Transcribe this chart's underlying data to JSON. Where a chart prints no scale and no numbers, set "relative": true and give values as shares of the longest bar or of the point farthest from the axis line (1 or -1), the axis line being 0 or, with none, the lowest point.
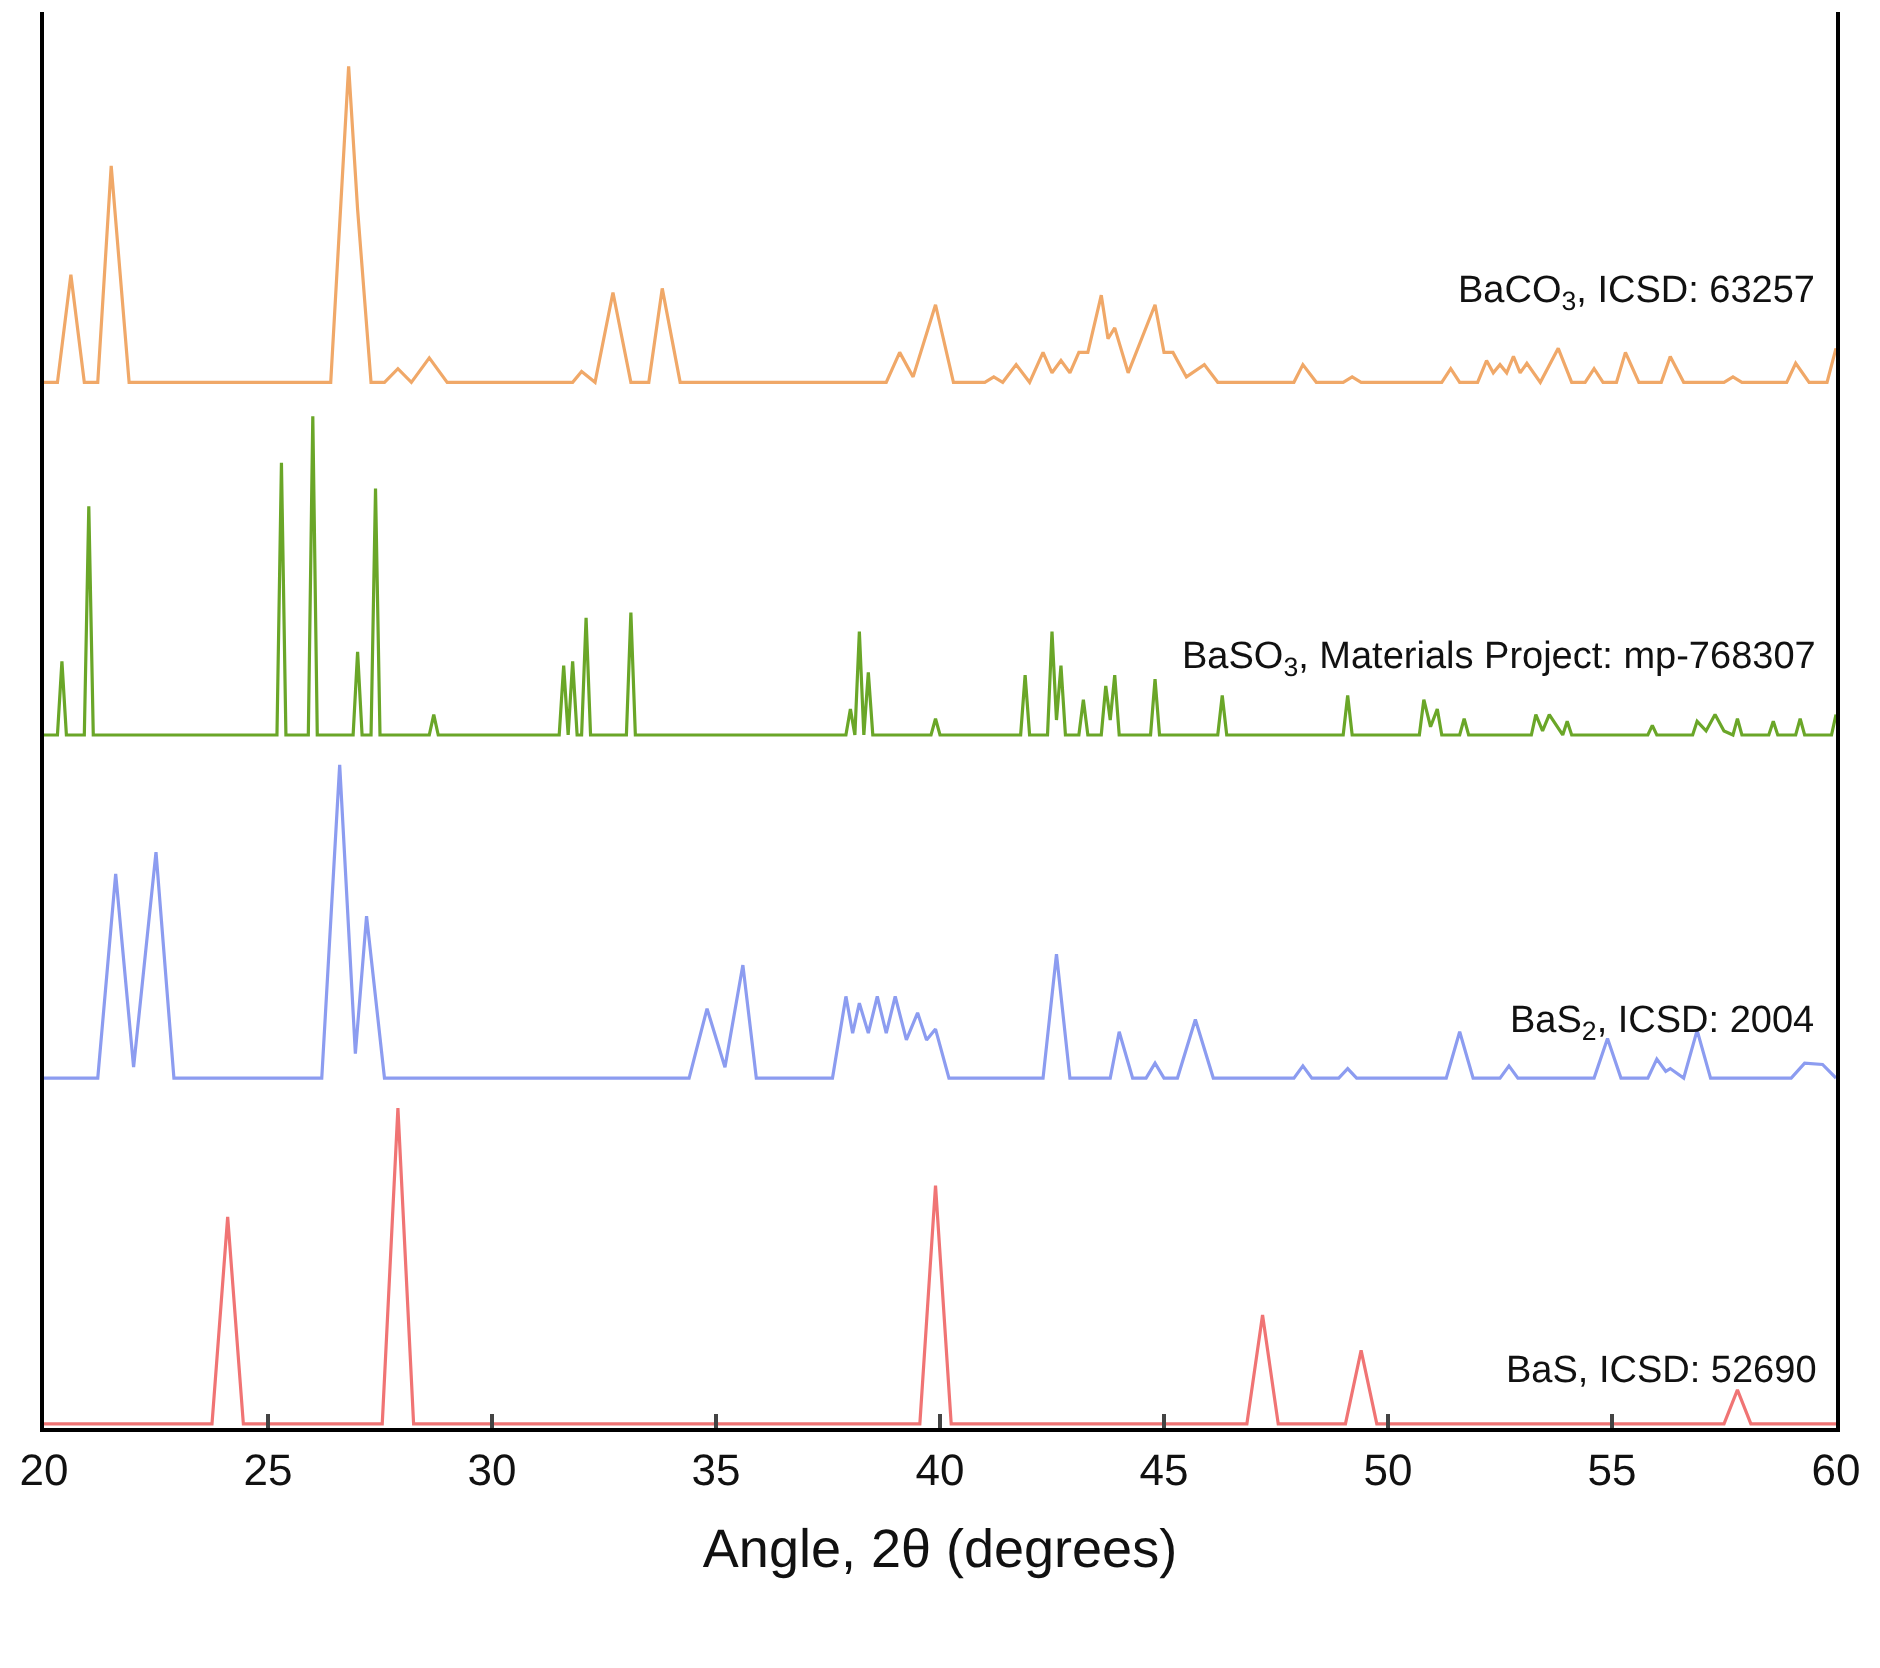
{
  "chart_data": {
    "type": "line",
    "relative": true,
    "xlabel": "Angle, 2θ (degrees)",
    "xlim": [
      20,
      60
    ],
    "xticks": [
      20,
      25,
      30,
      35,
      40,
      45,
      50,
      55,
      60
    ],
    "grid": false,
    "legend": false,
    "marker": "none",
    "line_style": "solid",
    "series": [
      {
        "name": "BaS, ICSD: 52690",
        "color": "#f07474",
        "x": [
          20,
          23.75,
          24.1,
          24.45,
          27.55,
          27.9,
          28.25,
          39.55,
          39.9,
          40.25,
          46.85,
          47.2,
          47.55,
          49.05,
          49.4,
          49.75,
          57.5,
          57.8,
          58.1,
          60
        ],
        "values": [
          0.003,
          0.003,
          0.155,
          0.003,
          0.003,
          0.235,
          0.003,
          0.003,
          0.178,
          0.003,
          0.003,
          0.083,
          0.003,
          0.003,
          0.057,
          0.003,
          0.003,
          0.028,
          0.003,
          0.003
        ]
      },
      {
        "name": "BaS$_{2}$, ICSD: 2004",
        "color": "#8c9cf0",
        "x": [
          20,
          21.2,
          21.6,
          22.0,
          22.5,
          22.9,
          26.2,
          26.6,
          26.95,
          27.2,
          27.6,
          34.4,
          34.8,
          35.2,
          35.6,
          35.9,
          37.6,
          37.9,
          38.05,
          38.2,
          38.4,
          38.6,
          38.8,
          39.0,
          39.25,
          39.5,
          39.7,
          39.9,
          40.2,
          42.3,
          42.6,
          42.9,
          43.8,
          44.0,
          44.3,
          44.6,
          44.8,
          45.0,
          45.3,
          45.7,
          46.1,
          47.9,
          48.1,
          48.3,
          48.9,
          49.1,
          49.3,
          51.3,
          51.6,
          51.9,
          52.5,
          52.7,
          52.9,
          54.6,
          54.9,
          55.2,
          55.8,
          56.0,
          56.2,
          56.3,
          56.6,
          56.9,
          57.2,
          59.0,
          59.3,
          59.7,
          60
        ],
        "values": [
          0.257,
          0.257,
          0.407,
          0.265,
          0.423,
          0.257,
          0.257,
          0.487,
          0.275,
          0.376,
          0.257,
          0.257,
          0.308,
          0.265,
          0.34,
          0.257,
          0.257,
          0.317,
          0.29,
          0.312,
          0.29,
          0.317,
          0.29,
          0.317,
          0.285,
          0.305,
          0.285,
          0.293,
          0.257,
          0.257,
          0.348,
          0.257,
          0.257,
          0.291,
          0.257,
          0.257,
          0.268,
          0.257,
          0.257,
          0.3,
          0.257,
          0.257,
          0.266,
          0.257,
          0.257,
          0.264,
          0.257,
          0.257,
          0.291,
          0.257,
          0.257,
          0.266,
          0.257,
          0.257,
          0.286,
          0.257,
          0.257,
          0.271,
          0.262,
          0.264,
          0.257,
          0.292,
          0.257,
          0.257,
          0.268,
          0.267,
          0.257
        ]
      },
      {
        "name": "BaSO$_{3}$, Materials Project: mp-768307",
        "color": "#6aa628",
        "x": [
          20,
          20.3,
          20.4,
          20.5,
          20.9,
          21.0,
          21.1,
          25.2,
          25.3,
          25.4,
          25.9,
          26.0,
          26.1,
          26.9,
          27.0,
          27.1,
          27.3,
          27.4,
          27.5,
          28.6,
          28.7,
          28.8,
          31.5,
          31.6,
          31.7,
          31.8,
          31.9,
          32.0,
          32.1,
          32.2,
          33.0,
          33.1,
          33.2,
          37.9,
          38.0,
          38.1,
          38.2,
          38.3,
          38.4,
          38.5,
          39.8,
          39.9,
          40.0,
          41.8,
          41.9,
          42.0,
          42.4,
          42.5,
          42.6,
          42.7,
          42.8,
          43.1,
          43.2,
          43.3,
          43.6,
          43.7,
          43.8,
          43.9,
          44.0,
          44.7,
          44.8,
          44.9,
          46.2,
          46.3,
          46.4,
          49.0,
          49.1,
          49.2,
          50.7,
          50.8,
          50.95,
          51.1,
          51.2,
          51.6,
          51.7,
          51.8,
          53.2,
          53.3,
          53.45,
          53.6,
          53.9,
          54.0,
          54.1,
          55.8,
          55.9,
          56.0,
          56.8,
          56.9,
          57.1,
          57.3,
          57.5,
          57.7,
          57.8,
          57.9,
          58.5,
          58.6,
          58.7,
          59.1,
          59.2,
          59.3,
          59.9,
          60
        ],
        "values": [
          0.509,
          0.509,
          0.563,
          0.509,
          0.509,
          0.677,
          0.509,
          0.509,
          0.709,
          0.509,
          0.509,
          0.743,
          0.509,
          0.509,
          0.57,
          0.509,
          0.509,
          0.69,
          0.509,
          0.509,
          0.524,
          0.509,
          0.509,
          0.56,
          0.509,
          0.563,
          0.509,
          0.509,
          0.595,
          0.509,
          0.509,
          0.599,
          0.509,
          0.509,
          0.528,
          0.509,
          0.585,
          0.509,
          0.555,
          0.509,
          0.509,
          0.521,
          0.509,
          0.509,
          0.553,
          0.509,
          0.509,
          0.585,
          0.52,
          0.56,
          0.509,
          0.509,
          0.535,
          0.509,
          0.509,
          0.545,
          0.52,
          0.553,
          0.509,
          0.509,
          0.55,
          0.509,
          0.509,
          0.538,
          0.509,
          0.509,
          0.538,
          0.509,
          0.509,
          0.535,
          0.515,
          0.528,
          0.509,
          0.509,
          0.521,
          0.509,
          0.509,
          0.524,
          0.512,
          0.524,
          0.509,
          0.519,
          0.509,
          0.509,
          0.516,
          0.509,
          0.509,
          0.519,
          0.512,
          0.524,
          0.512,
          0.509,
          0.521,
          0.509,
          0.509,
          0.519,
          0.509,
          0.509,
          0.521,
          0.509,
          0.509,
          0.524
        ]
      },
      {
        "name": "BaCO$_{3}$, ICSD: 63257",
        "color": "#f0a868",
        "x": [
          20,
          20.3,
          20.6,
          20.9,
          21.2,
          21.5,
          21.9,
          26.4,
          26.8,
          27.0,
          27.3,
          27.6,
          27.9,
          28.2,
          28.6,
          29.0,
          31.8,
          32.0,
          32.3,
          32.7,
          33.1,
          33.5,
          33.8,
          34.2,
          38.8,
          39.1,
          39.4,
          39.9,
          40.3,
          41.0,
          41.2,
          41.4,
          41.7,
          42.0,
          42.3,
          42.5,
          42.7,
          42.9,
          43.1,
          43.3,
          43.6,
          43.75,
          43.9,
          44.2,
          44.8,
          45.0,
          45.2,
          45.5,
          45.9,
          46.2,
          47.9,
          48.1,
          48.4,
          49.0,
          49.2,
          49.4,
          51.2,
          51.4,
          51.6,
          52.0,
          52.2,
          52.35,
          52.5,
          52.65,
          52.8,
          52.95,
          53.1,
          53.4,
          53.8,
          54.1,
          54.4,
          54.6,
          54.8,
          55.1,
          55.3,
          55.6,
          56.1,
          56.3,
          56.6,
          57.5,
          57.7,
          57.9,
          58.9,
          59.1,
          59.4,
          59.8,
          60
        ],
        "values": [
          0.768,
          0.768,
          0.847,
          0.768,
          0.768,
          0.927,
          0.768,
          0.768,
          1.0,
          0.895,
          0.768,
          0.768,
          0.778,
          0.768,
          0.786,
          0.768,
          0.768,
          0.776,
          0.768,
          0.834,
          0.768,
          0.768,
          0.837,
          0.768,
          0.768,
          0.79,
          0.772,
          0.825,
          0.768,
          0.768,
          0.772,
          0.768,
          0.781,
          0.768,
          0.79,
          0.775,
          0.784,
          0.775,
          0.79,
          0.79,
          0.832,
          0.8,
          0.808,
          0.775,
          0.825,
          0.79,
          0.79,
          0.772,
          0.781,
          0.768,
          0.768,
          0.781,
          0.768,
          0.768,
          0.772,
          0.768,
          0.768,
          0.778,
          0.768,
          0.768,
          0.784,
          0.775,
          0.781,
          0.775,
          0.787,
          0.775,
          0.782,
          0.768,
          0.793,
          0.768,
          0.768,
          0.778,
          0.768,
          0.768,
          0.79,
          0.768,
          0.768,
          0.787,
          0.768,
          0.768,
          0.772,
          0.768,
          0.768,
          0.782,
          0.768,
          0.768,
          0.793
        ]
      }
    ]
  }
}
